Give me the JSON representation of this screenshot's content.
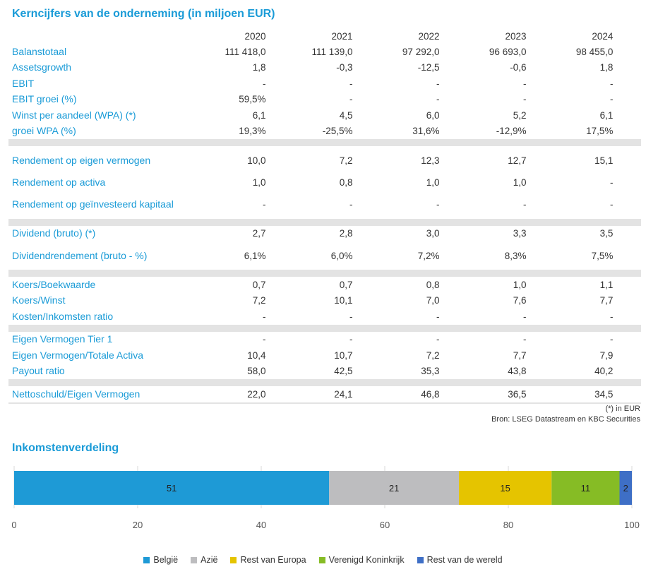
{
  "table": {
    "title": "Kerncijfers van de onderneming (in miljoen EUR)",
    "years": [
      "2020",
      "2021",
      "2022",
      "2023",
      "2024"
    ],
    "groups": [
      [
        {
          "label": "Balanstotaal",
          "values": [
            "111 418,0",
            "111 139,0",
            "97 292,0",
            "96 693,0",
            "98 455,0"
          ]
        },
        {
          "label": "Assetsgrowth",
          "values": [
            "1,8",
            "-0,3",
            "-12,5",
            "-0,6",
            "1,8"
          ]
        },
        {
          "label": "EBIT",
          "values": [
            "-",
            "-",
            "-",
            "-",
            "-"
          ]
        },
        {
          "label": "EBIT groei (%)",
          "values": [
            "59,5%",
            "-",
            "-",
            "-",
            "-"
          ]
        },
        {
          "label": "Winst per aandeel (WPA) (*)",
          "values": [
            "6,1",
            "4,5",
            "6,0",
            "5,2",
            "6,1"
          ]
        },
        {
          "label": "groei WPA (%)",
          "values": [
            "19,3%",
            "-25,5%",
            "31,6%",
            "-12,9%",
            "17,5%"
          ]
        }
      ],
      [
        {
          "label": "Rendement op eigen vermogen",
          "values": [
            "10,0",
            "7,2",
            "12,3",
            "12,7",
            "15,1"
          ],
          "tall": true
        },
        {
          "label": "Rendement op activa",
          "values": [
            "1,0",
            "0,8",
            "1,0",
            "1,0",
            "-"
          ]
        },
        {
          "label": "Rendement op geïnvesteerd kapitaal",
          "values": [
            "-",
            "-",
            "-",
            "-",
            "-"
          ],
          "tall": true
        }
      ],
      [
        {
          "label": "Dividend (bruto) (*)",
          "values": [
            "2,7",
            "2,8",
            "3,0",
            "3,3",
            "3,5"
          ]
        },
        {
          "label": "Dividendrendement (bruto - %)",
          "values": [
            "6,1%",
            "6,0%",
            "7,2%",
            "8,3%",
            "7,5%"
          ],
          "tall": true
        }
      ],
      [
        {
          "label": "Koers/Boekwaarde",
          "values": [
            "0,7",
            "0,7",
            "0,8",
            "1,0",
            "1,1"
          ]
        },
        {
          "label": "Koers/Winst",
          "values": [
            "7,2",
            "10,1",
            "7,0",
            "7,6",
            "7,7"
          ]
        },
        {
          "label": "Kosten/Inkomsten ratio",
          "values": [
            "-",
            "-",
            "-",
            "-",
            "-"
          ]
        }
      ],
      [
        {
          "label": "Eigen Vermogen Tier 1",
          "values": [
            "-",
            "-",
            "-",
            "-",
            "-"
          ]
        },
        {
          "label": "Eigen Vermogen/Totale Activa",
          "values": [
            "10,4",
            "10,7",
            "7,2",
            "7,7",
            "7,9"
          ]
        },
        {
          "label": "Payout ratio",
          "values": [
            "58,0",
            "42,5",
            "35,3",
            "43,8",
            "40,2"
          ]
        }
      ],
      [
        {
          "label": "Nettoschuld/Eigen Vermogen",
          "values": [
            "22,0",
            "24,1",
            "46,8",
            "36,5",
            "34,5"
          ]
        }
      ]
    ],
    "footnote": "(*) in EUR",
    "source": "Bron: LSEG Datastream en KBC Securities"
  },
  "chart_data": {
    "type": "bar",
    "title": "Inkomstenverdeling",
    "orientation": "horizontal-stacked",
    "xlim": [
      0,
      100
    ],
    "xticks": [
      0,
      20,
      40,
      60,
      80,
      100
    ],
    "grid": true,
    "legend_position": "bottom",
    "series": [
      {
        "name": "België",
        "values": [
          51
        ],
        "color": "#1e9ad6"
      },
      {
        "name": "Azië",
        "values": [
          21
        ],
        "color": "#bdbdbf"
      },
      {
        "name": "Rest van Europa",
        "values": [
          15
        ],
        "color": "#e5c400"
      },
      {
        "name": "Verenigd Koninkrijk",
        "values": [
          11
        ],
        "color": "#86bc25"
      },
      {
        "name": "Rest van de wereld",
        "values": [
          2
        ],
        "color": "#3e6fc6"
      }
    ]
  }
}
